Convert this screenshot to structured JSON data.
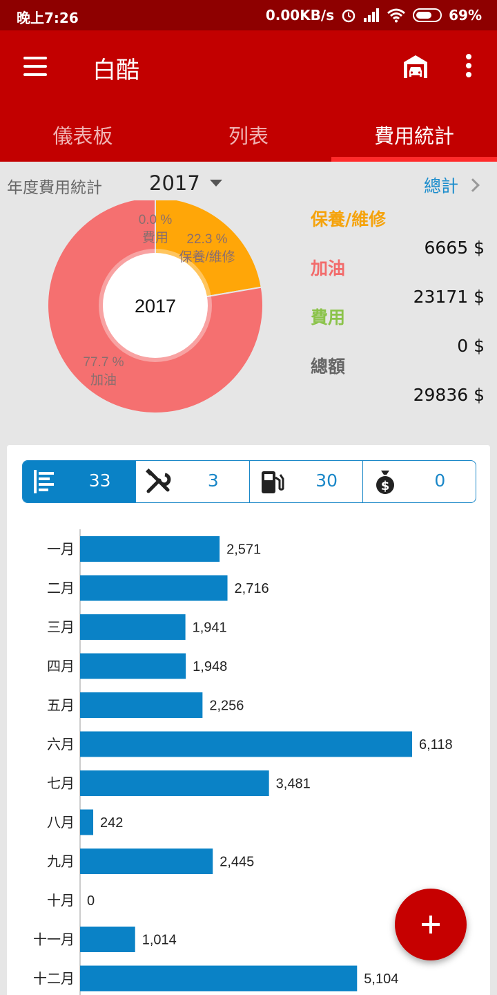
{
  "status_bar": {
    "time": "晚上7:26",
    "network_speed": "0.00KB/s",
    "battery": "69%",
    "battery_level": 0.69
  },
  "app_bar": {
    "title": "白酷"
  },
  "tabs": [
    {
      "label": "儀表板",
      "active": false
    },
    {
      "label": "列表",
      "active": false
    },
    {
      "label": "費用統計",
      "active": true
    }
  ],
  "year_row": {
    "label": "年度費用統計",
    "year": "2017",
    "total_link": "總計"
  },
  "pie_chart": {
    "center_label": "2017",
    "slices": [
      {
        "pct_label": "0.0 %",
        "name": "費用",
        "value": 0.0,
        "color": "#8bc34a"
      },
      {
        "pct_label": "22.3 %",
        "name": "保養/維修",
        "value": 22.3,
        "color": "#ffa608"
      },
      {
        "pct_label": "77.7 %",
        "name": "加油",
        "value": 77.7,
        "color": "#f57070"
      }
    ]
  },
  "legend": [
    {
      "name": "保養/維修",
      "amount": "6665 $",
      "color": "#f5a30c"
    },
    {
      "name": "加油",
      "amount": "23171 $",
      "color": "#f26b6b"
    },
    {
      "name": "費用",
      "amount": "0 $",
      "color": "#8bc34a"
    },
    {
      "name": "總額",
      "amount": "29836 $",
      "color": "#666666"
    }
  ],
  "filters": [
    {
      "icon": "list-icon",
      "count": "33",
      "active": true
    },
    {
      "icon": "tools-icon",
      "count": "3",
      "active": false
    },
    {
      "icon": "fuel-pump-icon",
      "count": "30",
      "active": false
    },
    {
      "icon": "money-bag-icon",
      "count": "0",
      "active": false
    }
  ],
  "chart_data": {
    "type": "bar",
    "orientation": "horizontal",
    "categories": [
      "一月",
      "二月",
      "三月",
      "四月",
      "五月",
      "六月",
      "七月",
      "八月",
      "九月",
      "十月",
      "十一月",
      "十二月"
    ],
    "values": [
      2571,
      2716,
      1941,
      1948,
      2256,
      6118,
      3481,
      242,
      2445,
      0,
      1014,
      5104
    ],
    "value_labels": [
      "2,571",
      "2,716",
      "1,941",
      "1,948",
      "2,256",
      "6,118",
      "3,481",
      "242",
      "2,445",
      "0",
      "1,014",
      "5,104"
    ],
    "xlim": [
      0,
      6118
    ],
    "grid": false,
    "bar_color": "#0a82c6"
  }
}
